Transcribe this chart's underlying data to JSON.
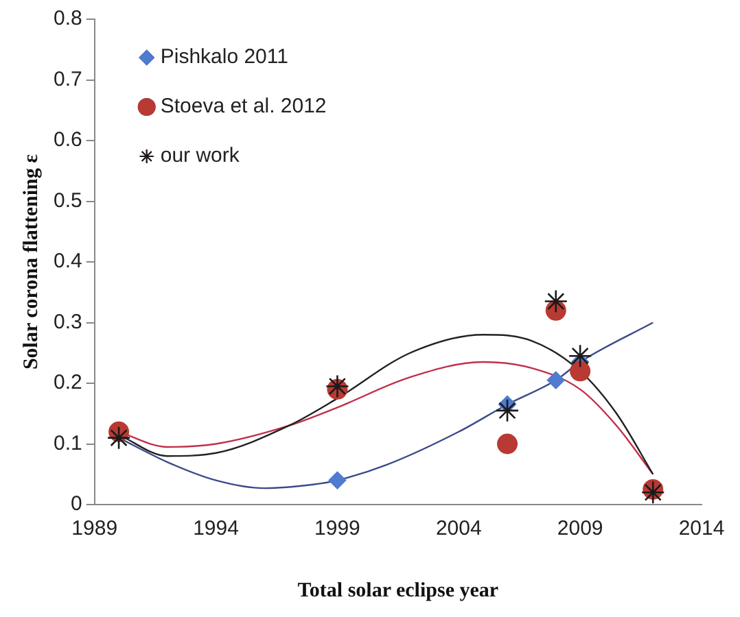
{
  "chart_data": {
    "type": "scatter",
    "xlabel": "Total solar eclipse year",
    "ylabel": "Solar corona flattening ε",
    "xlim": [
      1989,
      2014
    ],
    "xticks": [
      1989,
      1994,
      1999,
      2004,
      2009,
      2014
    ],
    "ylim": [
      0,
      0.8
    ],
    "yticks": [
      0,
      0.1,
      0.2,
      0.3,
      0.4,
      0.5,
      0.6,
      0.7,
      0.8
    ],
    "grid": false,
    "legend": "top left",
    "series": [
      {
        "type": "line",
        "color": "#3b4a8a",
        "marker": "none",
        "x": [
          1990,
          1992,
          1994,
          1996,
          1998,
          1999,
          2001,
          2004,
          2006,
          2008,
          2009,
          2012
        ],
        "values": [
          0.11,
          0.07,
          0.04,
          0.027,
          0.033,
          0.04,
          0.065,
          0.12,
          0.165,
          0.205,
          0.235,
          0.3
        ]
      },
      {
        "type": "line",
        "color": "#c0304a",
        "marker": "none",
        "x": [
          1990,
          1992,
          1994,
          1997,
          1999,
          2002,
          2005,
          2007,
          2009,
          2010.5,
          2012
        ],
        "values": [
          0.12,
          0.095,
          0.1,
          0.13,
          0.16,
          0.21,
          0.235,
          0.225,
          0.19,
          0.13,
          0.05
        ]
      },
      {
        "type": "line",
        "color": "#222222",
        "marker": "none",
        "x": [
          1990,
          1992,
          1994,
          1997,
          1999,
          2002,
          2005,
          2007,
          2009,
          2010.5,
          2012
        ],
        "values": [
          0.115,
          0.08,
          0.085,
          0.13,
          0.175,
          0.25,
          0.28,
          0.27,
          0.22,
          0.15,
          0.05
        ]
      },
      {
        "name": "Pishkalo 2011",
        "color": "#4f7bd0",
        "marker": "diamond",
        "x": [
          1999,
          2006,
          2008,
          2009
        ],
        "values": [
          0.04,
          0.165,
          0.205,
          0.235
        ]
      },
      {
        "name": "Stoeva et al. 2012",
        "color": "#b83a32",
        "marker": "circle",
        "x": [
          1990,
          1999,
          2006,
          2008,
          2009,
          2012
        ],
        "values": [
          0.12,
          0.19,
          0.1,
          0.32,
          0.22,
          0.025
        ]
      },
      {
        "name": "our work",
        "color": "#1a1a1a",
        "marker": "cross",
        "x": [
          1990,
          1999,
          2006,
          2008,
          2009,
          2012
        ],
        "values": [
          0.11,
          0.195,
          0.155,
          0.335,
          0.245,
          0.02
        ]
      }
    ]
  }
}
